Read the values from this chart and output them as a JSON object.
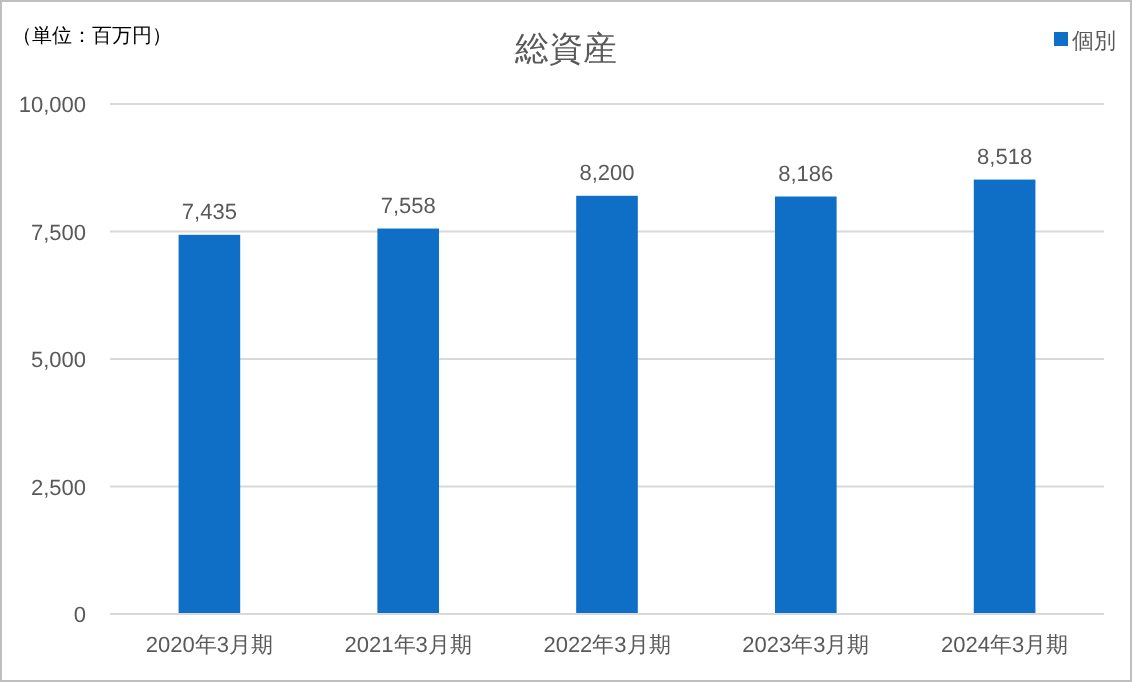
{
  "chart_data": {
    "type": "bar",
    "title": "総資産",
    "annotations": [
      "（単位：百万円）"
    ],
    "categories": [
      "2020年3月期",
      "2021年3月期",
      "2022年3月期",
      "2023年3月期",
      "2024年3月期"
    ],
    "series": [
      {
        "name": "個別",
        "color": "#0f6fc6",
        "values": [
          7435,
          7558,
          8200,
          8186,
          8518
        ],
        "value_labels": [
          "7,435",
          "7,558",
          "8,200",
          "8,186",
          "8,518"
        ]
      }
    ],
    "ylim": [
      0,
      10000
    ],
    "yticks": [
      {
        "value": 0,
        "label": "0"
      },
      {
        "value": 2500,
        "label": "2,500"
      },
      {
        "value": 5000,
        "label": "5,000"
      },
      {
        "value": 7500,
        "label": "7,500"
      },
      {
        "value": 10000,
        "label": "10,000"
      }
    ],
    "grid": "y",
    "legend": "top right"
  }
}
